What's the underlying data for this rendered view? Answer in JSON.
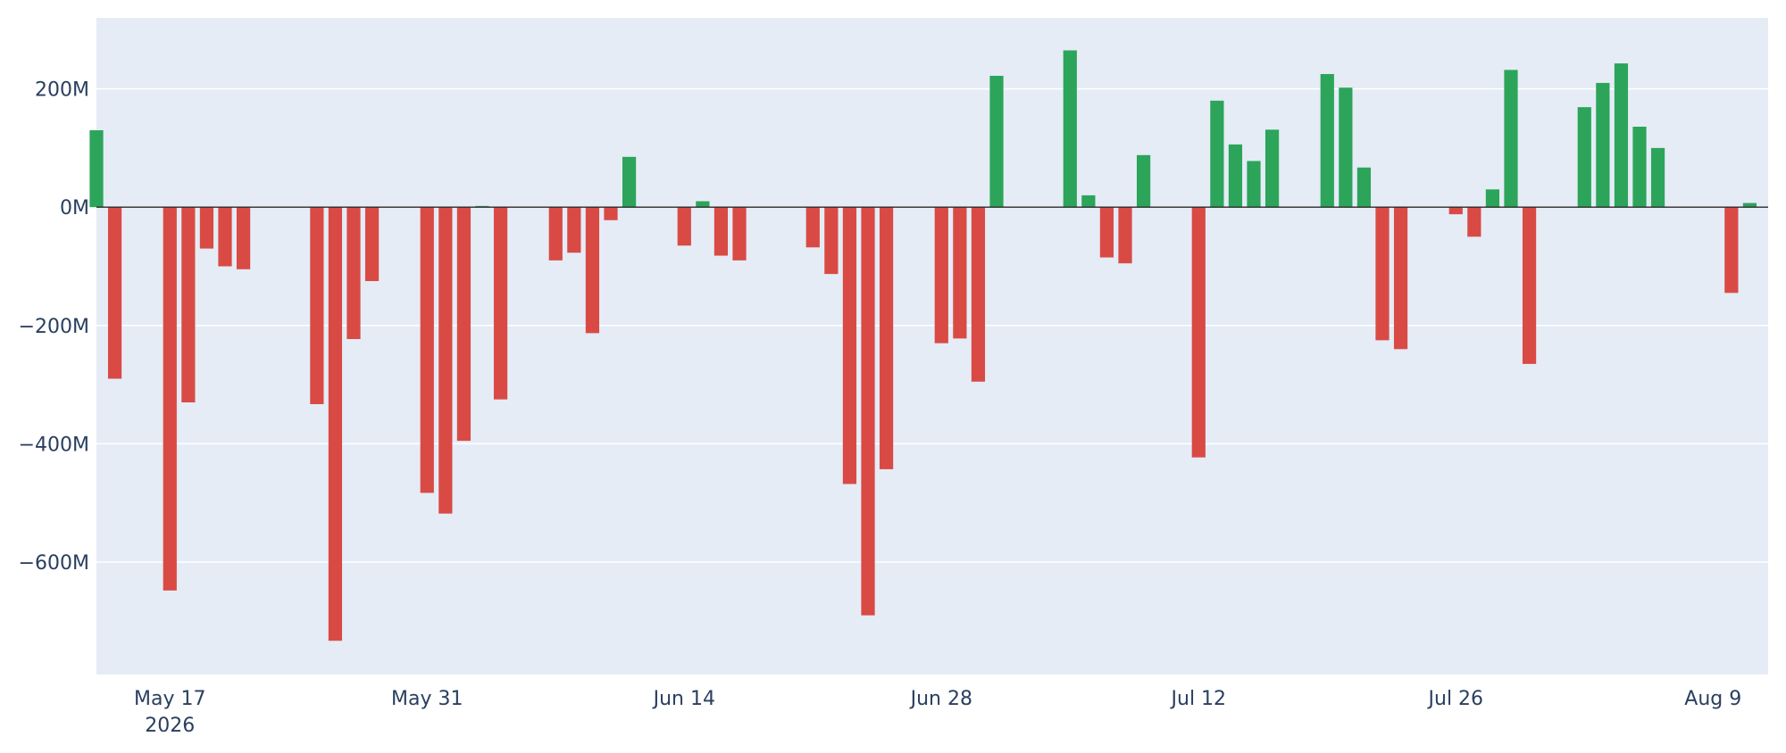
{
  "chart_data": {
    "type": "bar",
    "title": "",
    "xlabel": "",
    "ylabel": "",
    "ylim": [
      -790,
      320
    ],
    "yticks": [
      {
        "value": 200,
        "label": "200M"
      },
      {
        "value": 0,
        "label": "0M"
      },
      {
        "value": -200,
        "label": "−200M"
      },
      {
        "value": -400,
        "label": "−400M"
      },
      {
        "value": -600,
        "label": "−600M"
      }
    ],
    "xlim": [
      "2026-05-13",
      "2026-08-12"
    ],
    "xticks": [
      {
        "date": "2026-05-17",
        "label": "May 17",
        "sublabel": "2026"
      },
      {
        "date": "2026-05-31",
        "label": "May 31",
        "sublabel": ""
      },
      {
        "date": "2026-06-14",
        "label": "Jun 14",
        "sublabel": ""
      },
      {
        "date": "2026-06-28",
        "label": "Jun 28",
        "sublabel": ""
      },
      {
        "date": "2026-07-12",
        "label": "Jul 12",
        "sublabel": ""
      },
      {
        "date": "2026-07-26",
        "label": "Jul 26",
        "sublabel": ""
      },
      {
        "date": "2026-08-09",
        "label": "Aug 9",
        "sublabel": ""
      }
    ],
    "value_unit": "M",
    "grid": true,
    "legend": "none",
    "colors": {
      "positive": "#2ca55a",
      "negative": "#d94a45",
      "plot_bg": "#e5ecf6",
      "grid": "#ffffff",
      "zero_line": "#2a2a2a",
      "text": "#2a3f5f"
    },
    "x": [
      "2026-05-13",
      "2026-05-14",
      "2026-05-17",
      "2026-05-18",
      "2026-05-19",
      "2026-05-20",
      "2026-05-21",
      "2026-05-25",
      "2026-05-26",
      "2026-05-27",
      "2026-05-28",
      "2026-05-31",
      "2026-06-01",
      "2026-06-02",
      "2026-06-03",
      "2026-06-04",
      "2026-06-07",
      "2026-06-08",
      "2026-06-09",
      "2026-06-10",
      "2026-06-11",
      "2026-06-14",
      "2026-06-15",
      "2026-06-16",
      "2026-06-17",
      "2026-06-21",
      "2026-06-22",
      "2026-06-23",
      "2026-06-24",
      "2026-06-25",
      "2026-06-28",
      "2026-06-29",
      "2026-06-30",
      "2026-07-01",
      "2026-07-05",
      "2026-07-06",
      "2026-07-07",
      "2026-07-08",
      "2026-07-09",
      "2026-07-12",
      "2026-07-13",
      "2026-07-14",
      "2026-07-15",
      "2026-07-16",
      "2026-07-19",
      "2026-07-20",
      "2026-07-21",
      "2026-07-22",
      "2026-07-23",
      "2026-07-26",
      "2026-07-27",
      "2026-07-28",
      "2026-07-29",
      "2026-07-30",
      "2026-08-02",
      "2026-08-03",
      "2026-08-04",
      "2026-08-05",
      "2026-08-06",
      "2026-08-10",
      "2026-08-11"
    ],
    "values": [
      130,
      -290,
      -648,
      -330,
      -70,
      -100,
      -105,
      -333,
      -733,
      -223,
      -125,
      -483,
      -518,
      -395,
      2,
      -325,
      -90,
      -77,
      -213,
      -22,
      85,
      -65,
      10,
      -82,
      -90,
      -68,
      -113,
      -468,
      -690,
      -443,
      -230,
      -222,
      -295,
      222,
      265,
      20,
      -85,
      -95,
      88,
      -423,
      180,
      106,
      78,
      131,
      225,
      202,
      67,
      -225,
      -240,
      -12,
      -50,
      30,
      232,
      -265,
      169,
      210,
      243,
      136,
      100,
      -145,
      7
    ]
  }
}
